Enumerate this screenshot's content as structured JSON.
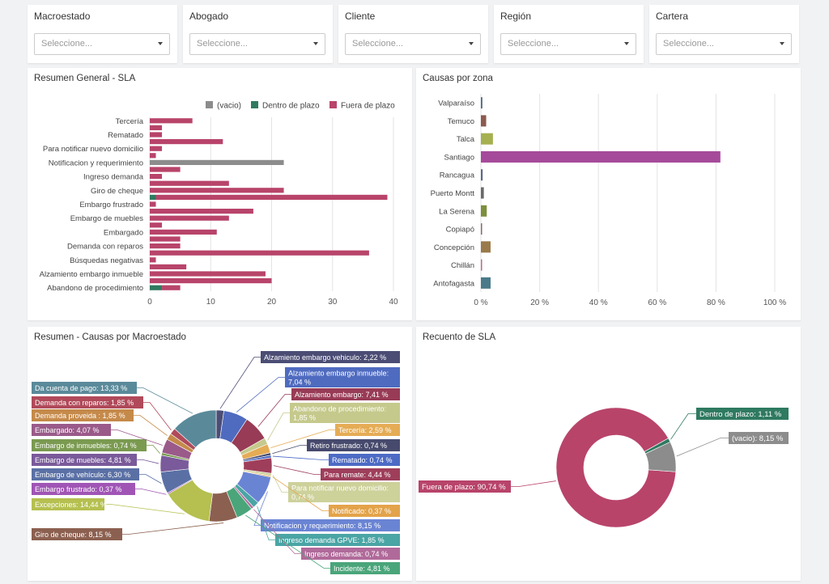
{
  "filters": [
    {
      "label": "Macroestado",
      "placeholder": "Seleccione..."
    },
    {
      "label": "Abogado",
      "placeholder": "Seleccione..."
    },
    {
      "label": "Cliente",
      "placeholder": "Seleccione..."
    },
    {
      "label": "Región",
      "placeholder": "Seleccione..."
    },
    {
      "label": "Cartera",
      "placeholder": "Seleccione..."
    }
  ],
  "panels": {
    "sla_summary_title": "Resumen General - SLA",
    "zones_title": "Causas por zona",
    "macro_title": "Resumen - Causas por Macroestado",
    "count_title": "Recuento de SLA"
  },
  "colors": {
    "vacio": "#8c8c8c",
    "dentro": "#2f7a61",
    "fuera": "#b8446a"
  },
  "chart_data": [
    {
      "type": "bar",
      "orientation": "horizontal",
      "title": "Resumen General - SLA",
      "legend": [
        "(vacio)",
        "Dentro de plazo",
        "Fuera de plazo"
      ],
      "legend_position": "top-right",
      "xlim": [
        0,
        40
      ],
      "xticks": [
        "0",
        "10",
        "20",
        "30",
        "40"
      ],
      "grid": true,
      "visible_labels": [
        "Tercería",
        "Rematado",
        "Para notificar nuevo domicilio",
        "Notificacion y requerimiento",
        "Ingreso demanda",
        "Giro de cheque",
        "Embargo frustrado",
        "Embargo de muebles",
        "Embargado",
        "Demanda con reparos",
        "Búsquedas negativas",
        "Alzamiento embargo inmueble",
        "Abandono de procedimiento"
      ],
      "rows": [
        {
          "fuera": 7
        },
        {
          "fuera": 2
        },
        {
          "fuera": 2
        },
        {
          "fuera": 12
        },
        {
          "fuera": 2
        },
        {
          "fuera": 1
        },
        {
          "vacio": 22
        },
        {
          "fuera": 5
        },
        {
          "fuera": 2
        },
        {
          "fuera": 13
        },
        {
          "fuera": 22
        },
        {
          "dentro": 1,
          "fuera": 38
        },
        {
          "fuera": 1
        },
        {
          "fuera": 17
        },
        {
          "fuera": 13
        },
        {
          "fuera": 2
        },
        {
          "fuera": 11
        },
        {
          "fuera": 5
        },
        {
          "fuera": 5
        },
        {
          "fuera": 36
        },
        {
          "fuera": 1
        },
        {
          "fuera": 6
        },
        {
          "fuera": 19
        },
        {
          "fuera": 20
        },
        {
          "dentro": 2,
          "fuera": 3
        }
      ]
    },
    {
      "type": "bar",
      "orientation": "horizontal",
      "title": "Causas por zona",
      "xlim": [
        0,
        100
      ],
      "xticks": [
        "0 %",
        "20 %",
        "40 %",
        "60 %",
        "80 %",
        "100 %"
      ],
      "grid": true,
      "categories": [
        "Valparaíso",
        "Temuco",
        "Talca",
        "Santiago",
        "Rancagua",
        "Puerto Montt",
        "La Serena",
        "Copiapó",
        "Concepción",
        "Chillán",
        "Antofagasta"
      ],
      "values": [
        0.5,
        1.8,
        4.1,
        81.5,
        0.6,
        1.0,
        2.0,
        0.4,
        3.3,
        0.3,
        3.3
      ],
      "colors": [
        "#4a6a80",
        "#8c5a4e",
        "#a5b050",
        "#a54a9a",
        "#5a6a8a",
        "#6a6a6a",
        "#7d8f3c",
        "#8c6a6a",
        "#9a7a4a",
        "#c06a8a",
        "#4a7a8a"
      ]
    },
    {
      "type": "pie",
      "style": "donut",
      "title": "Resumen - Causas por Macroestado",
      "slices": [
        {
          "label": "Alzamiento embargo vehiculo: 2,22 %",
          "value": 2.22,
          "color": "#4b4d75"
        },
        {
          "label": "Alzamiento embargo inmueble: 7,04 %",
          "value": 7.04,
          "color": "#4f6bc0"
        },
        {
          "label": "Alzamiento embargo: 7,41 %",
          "value": 7.41,
          "color": "#983b56"
        },
        {
          "label": "Abandono de procedimiento: 1,85 %",
          "value": 1.85,
          "color": "#c5c98c"
        },
        {
          "label": "Tercería: 2,59 %",
          "value": 2.59,
          "color": "#e5ac55"
        },
        {
          "label": "Retiro frustrado: 0,74 %",
          "value": 0.74,
          "color": "#474a6d"
        },
        {
          "label": "Rematado: 0,74 %",
          "value": 0.74,
          "color": "#4d6bc5"
        },
        {
          "label": "Para remate: 4,44 %",
          "value": 4.44,
          "color": "#9e3e5a"
        },
        {
          "label": "Para notificar nuevo domicilio: 0,74 %",
          "value": 0.74,
          "color": "#cdd19a"
        },
        {
          "label": "Notificado: 0,37 %",
          "value": 0.37,
          "color": "#e3a34a"
        },
        {
          "label": "Notificacion y requerimiento: 8,15 %",
          "value": 8.15,
          "color": "#6a84d4"
        },
        {
          "label": "Ingreso demanda GPVE: 1,85 %",
          "value": 1.85,
          "color": "#4aa5a5"
        },
        {
          "label": "Ingreso demanda: 0,74 %",
          "value": 0.74,
          "color": "#b06a9a"
        },
        {
          "label": "Incidente: 4,81 %",
          "value": 4.81,
          "color": "#4aa57a"
        },
        {
          "label": "Giro de cheque: 8,15 %",
          "value": 8.15,
          "color": "#8c6050"
        },
        {
          "label": "Excepciones: 14,44 %",
          "value": 14.44,
          "color": "#b5c050"
        },
        {
          "label": "Embargo frustrado: 0,37 %",
          "value": 0.37,
          "color": "#a055b5"
        },
        {
          "label": "Embargo de vehículo: 6,30 %",
          "value": 6.3,
          "color": "#5a70a5"
        },
        {
          "label": "Embargo de muebles: 4,81 %",
          "value": 4.81,
          "color": "#7a5a9a"
        },
        {
          "label": "Embargo de inmuebles: 0,74 %",
          "value": 0.74,
          "color": "#7a9a50"
        },
        {
          "label": "Embargado: 4,07 %",
          "value": 4.07,
          "color": "#9a5a8a"
        },
        {
          "label": "Demanda proveida : 1,85 %",
          "value": 1.85,
          "color": "#c58a4a"
        },
        {
          "label": "Demanda con reparos: 1,85 %",
          "value": 1.85,
          "color": "#b04a5a"
        },
        {
          "label": "Da cuenta de pago: 13,33 %",
          "value": 13.33,
          "color": "#5a8a9a"
        }
      ]
    },
    {
      "type": "pie",
      "style": "donut",
      "title": "Recuento de SLA",
      "slices": [
        {
          "label": "Fuera de plazo: 90,74 %",
          "value": 90.74,
          "color": "#b8446a"
        },
        {
          "label": "Dentro de plazo: 1,11 %",
          "value": 1.11,
          "color": "#2f7a61"
        },
        {
          "label": "(vacio): 8,15 %",
          "value": 8.15,
          "color": "#8c8c8c"
        }
      ]
    }
  ]
}
